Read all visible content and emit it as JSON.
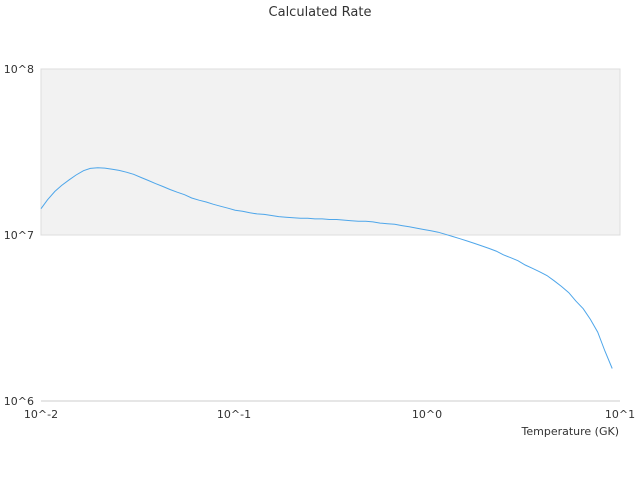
{
  "chart_data": {
    "type": "line",
    "title": "Calculated Rate",
    "xlabel": "Temperature (GK)",
    "ylabel": "",
    "x_scale": "log",
    "y_scale": "log",
    "xlim": [
      0.01,
      10
    ],
    "ylim": [
      1000000,
      100000000
    ],
    "x_ticks": [
      {
        "value": 0.01,
        "label": "10^-2"
      },
      {
        "value": 0.1,
        "label": "10^-1"
      },
      {
        "value": 1,
        "label": "10^0"
      },
      {
        "value": 10,
        "label": "10^1"
      }
    ],
    "y_ticks": [
      {
        "value": 1000000,
        "label": "10^6"
      },
      {
        "value": 10000000,
        "label": "10^7"
      },
      {
        "value": 100000000,
        "label": "10^8"
      }
    ],
    "grid": false,
    "legend": "none",
    "colors": {
      "line": "#4ea6ea",
      "band_fill": "#f2f2f2",
      "band_border": "#dddddd",
      "axis": "#cccccc",
      "text": "#333333"
    },
    "series": [
      {
        "x": [
          0.01,
          0.0108,
          0.0118,
          0.0128,
          0.014,
          0.0152,
          0.0166,
          0.018,
          0.0197,
          0.0214,
          0.0234,
          0.0254,
          0.0277,
          0.0302,
          0.033,
          0.036,
          0.0392,
          0.0428,
          0.0466,
          0.0508,
          0.0554,
          0.0604,
          0.0659,
          0.0718,
          0.0783,
          0.0854,
          0.0931,
          0.1015,
          0.1107,
          0.1207,
          0.1316,
          0.1434,
          0.1564,
          0.1705,
          0.1859,
          0.2027,
          0.221,
          0.241,
          0.2627,
          0.2864,
          0.3123,
          0.3405,
          0.3713,
          0.4048,
          0.4413,
          0.4812,
          0.5247,
          0.5721,
          0.6237,
          0.68,
          0.7415,
          0.8084,
          0.8815,
          0.9611,
          1.0479,
          1.1426,
          1.2458,
          1.3584,
          1.4811,
          1.6149,
          1.7608,
          1.9199,
          2.0933,
          2.2825,
          2.4887,
          2.7135,
          2.9587,
          3.226,
          3.5175,
          3.8353,
          4.1818,
          4.5596,
          4.9716,
          5.4208,
          5.9105,
          6.4445,
          7.0268,
          7.6617,
          8.3539,
          9.1087
        ],
        "y": [
          14400000,
          16300000,
          18300000,
          19900000,
          21500000,
          23000000,
          24400000,
          25200000,
          25400000,
          25300000,
          24900000,
          24500000,
          23900000,
          23200000,
          22200000,
          21300000,
          20400000,
          19600000,
          18800000,
          18100000,
          17500000,
          16700000,
          16200000,
          15800000,
          15300000,
          14900000,
          14500000,
          14100000,
          13900000,
          13600000,
          13400000,
          13300000,
          13100000,
          12900000,
          12800000,
          12700000,
          12600000,
          12600000,
          12500000,
          12500000,
          12400000,
          12400000,
          12300000,
          12200000,
          12100000,
          12100000,
          12000000,
          11800000,
          11700000,
          11600000,
          11400000,
          11200000,
          11000000,
          10800000,
          10600000,
          10400000,
          10100000,
          9800000,
          9500000,
          9200000,
          8900000,
          8600000,
          8300000,
          8000000,
          7600000,
          7300000,
          7000000,
          6600000,
          6300000,
          6000000,
          5700000,
          5300000,
          4900000,
          4500000,
          4000000,
          3600000,
          3100000,
          2600000,
          2000000,
          1570000
        ]
      }
    ]
  }
}
